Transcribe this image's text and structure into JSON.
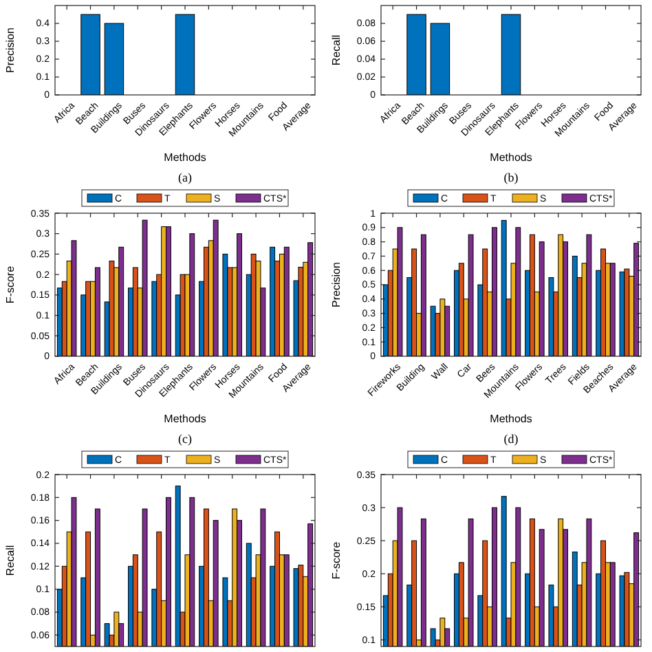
{
  "chart_data": [
    {
      "type": "bar",
      "ylabel": "Precision",
      "xlabel": "Methods",
      "annotations": [
        "(a)"
      ],
      "categories": [
        "Africa",
        "Beach",
        "Buildings",
        "Buses",
        "Dinosaurs",
        "Elephants",
        "Flowers",
        "Horses",
        "Mountains",
        "Food",
        "Average"
      ],
      "ylim": [
        0,
        0.5
      ],
      "yticks": [
        0,
        0.1,
        0.2,
        0.3,
        0.4
      ],
      "series": [
        {
          "color": "#0072bd",
          "values": [
            null,
            0.45,
            0.4,
            null,
            null,
            0.45,
            null,
            null,
            null,
            null,
            null
          ]
        }
      ]
    },
    {
      "type": "bar",
      "ylabel": "Recall",
      "xlabel": "Methods",
      "annotations": [
        "(b)"
      ],
      "categories": [
        "Africa",
        "Beach",
        "Buildings",
        "Buses",
        "Dinosaurs",
        "Elephants",
        "Flowers",
        "Horses",
        "Mountains",
        "Food",
        "Average"
      ],
      "ylim": [
        0,
        0.1
      ],
      "yticks": [
        0,
        0.02,
        0.04,
        0.06,
        0.08
      ],
      "series": [
        {
          "color": "#0072bd",
          "values": [
            null,
            0.09,
            0.08,
            null,
            null,
            0.09,
            null,
            null,
            null,
            null,
            null
          ]
        }
      ]
    },
    {
      "type": "bar",
      "ylabel": "F-score",
      "xlabel": "Methods",
      "annotations": [
        "(c)"
      ],
      "legend": "top",
      "categories": [
        "Africa",
        "Beach",
        "Buildings",
        "Buses",
        "Dinosaurs",
        "Elephants",
        "Flowers",
        "Horses",
        "Mountains",
        "Food",
        "Average"
      ],
      "ylim": [
        0,
        0.35
      ],
      "yticks": [
        0,
        0.05,
        0.1,
        0.15,
        0.2,
        0.25,
        0.3,
        0.35
      ],
      "series": [
        {
          "name": "C",
          "color": "#0072bd",
          "values": [
            0.167,
            0.15,
            0.133,
            0.167,
            0.183,
            0.15,
            0.183,
            0.25,
            0.2,
            0.267,
            0.185
          ]
        },
        {
          "name": "T",
          "color": "#d95319",
          "values": [
            0.183,
            0.183,
            0.233,
            0.217,
            0.2,
            0.2,
            0.267,
            0.217,
            0.25,
            0.233,
            0.218
          ]
        },
        {
          "name": "S",
          "color": "#edb120",
          "values": [
            0.233,
            0.183,
            0.217,
            0.167,
            0.317,
            0.2,
            0.283,
            0.217,
            0.233,
            0.25,
            0.23
          ]
        },
        {
          "name": "CTS*",
          "color": "#7e2f8e",
          "values": [
            0.283,
            0.217,
            0.267,
            0.333,
            0.317,
            0.3,
            0.333,
            0.3,
            0.167,
            0.267,
            0.278
          ]
        }
      ]
    },
    {
      "type": "bar",
      "ylabel": "Precision",
      "xlabel": "Methods",
      "annotations": [
        "(d)"
      ],
      "legend": "top",
      "categories": [
        "Fireworks",
        "Building",
        "Wall",
        "Car",
        "Bees",
        "Mountains",
        "Flowers",
        "Trees",
        "Fields",
        "Beaches",
        "Average"
      ],
      "ylim": [
        0,
        1
      ],
      "yticks": [
        0,
        0.1,
        0.2,
        0.3,
        0.4,
        0.5,
        0.6,
        0.7,
        0.8,
        0.9,
        1
      ],
      "series": [
        {
          "name": "C",
          "color": "#0072bd",
          "values": [
            0.5,
            0.55,
            0.35,
            0.6,
            0.5,
            0.95,
            0.6,
            0.55,
            0.7,
            0.6,
            0.59
          ]
        },
        {
          "name": "T",
          "color": "#d95319",
          "values": [
            0.6,
            0.75,
            0.3,
            0.65,
            0.75,
            0.4,
            0.85,
            0.45,
            0.55,
            0.75,
            0.61
          ]
        },
        {
          "name": "S",
          "color": "#edb120",
          "values": [
            0.75,
            0.3,
            0.4,
            0.4,
            0.45,
            0.65,
            0.45,
            0.85,
            0.65,
            0.65,
            0.56
          ]
        },
        {
          "name": "CTS*",
          "color": "#7e2f8e",
          "values": [
            0.9,
            0.85,
            0.35,
            0.85,
            0.9,
            0.9,
            0.8,
            0.8,
            0.85,
            0.65,
            0.79
          ]
        }
      ]
    },
    {
      "type": "bar",
      "ylabel": "Recall",
      "legend": "top",
      "categories": [
        null,
        null,
        null,
        null,
        null,
        null,
        null,
        null,
        null,
        null,
        null
      ],
      "ylim": [
        0.05,
        0.2
      ],
      "yticks": [
        0.06,
        0.08,
        0.1,
        0.12,
        0.14,
        0.16,
        0.18,
        0.2
      ],
      "series": [
        {
          "name": "C",
          "color": "#0072bd",
          "values": [
            0.1,
            0.11,
            0.07,
            0.12,
            0.1,
            0.19,
            0.12,
            0.11,
            0.14,
            0.12,
            0.118
          ]
        },
        {
          "name": "T",
          "color": "#d95319",
          "values": [
            0.12,
            0.15,
            0.06,
            0.13,
            0.15,
            0.08,
            0.17,
            0.09,
            0.11,
            0.15,
            0.121
          ]
        },
        {
          "name": "S",
          "color": "#edb120",
          "values": [
            0.15,
            0.06,
            0.08,
            0.08,
            0.09,
            0.13,
            0.09,
            0.17,
            0.13,
            0.13,
            0.111
          ]
        },
        {
          "name": "CTS*",
          "color": "#7e2f8e",
          "values": [
            0.18,
            0.17,
            0.07,
            0.17,
            0.18,
            0.18,
            0.16,
            0.16,
            0.17,
            0.13,
            0.157
          ]
        }
      ]
    },
    {
      "type": "bar",
      "ylabel": "F-score",
      "legend": "top",
      "categories": [
        null,
        null,
        null,
        null,
        null,
        null,
        null,
        null,
        null,
        null,
        null
      ],
      "ylim": [
        0.09,
        0.35
      ],
      "yticks": [
        0.1,
        0.15,
        0.2,
        0.25,
        0.3,
        0.35
      ],
      "series": [
        {
          "name": "C",
          "color": "#0072bd",
          "values": [
            0.167,
            0.183,
            0.117,
            0.2,
            0.167,
            0.317,
            0.2,
            0.183,
            0.233,
            0.2,
            0.197
          ]
        },
        {
          "name": "T",
          "color": "#d95319",
          "values": [
            0.2,
            0.25,
            0.1,
            0.217,
            0.25,
            0.133,
            0.283,
            0.15,
            0.183,
            0.25,
            0.202
          ]
        },
        {
          "name": "S",
          "color": "#edb120",
          "values": [
            0.25,
            0.1,
            0.133,
            0.133,
            0.15,
            0.217,
            0.15,
            0.283,
            0.217,
            0.217,
            0.185
          ]
        },
        {
          "name": "CTS*",
          "color": "#7e2f8e",
          "values": [
            0.3,
            0.283,
            0.117,
            0.283,
            0.3,
            0.3,
            0.267,
            0.267,
            0.283,
            0.217,
            0.262
          ]
        }
      ]
    }
  ]
}
